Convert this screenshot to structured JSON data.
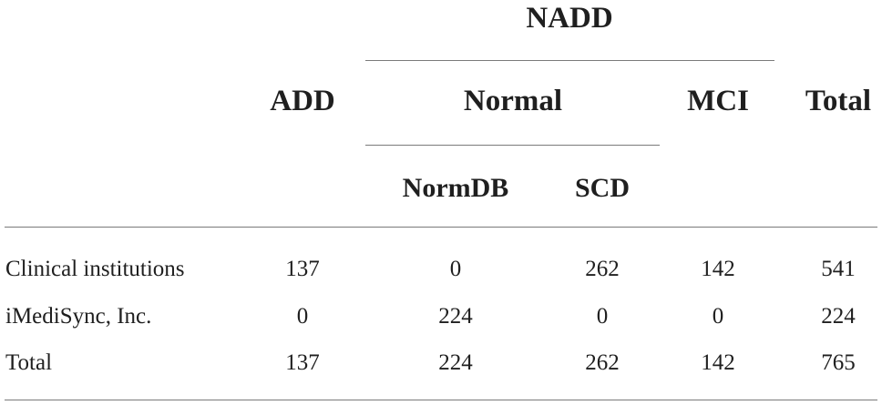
{
  "table": {
    "header": {
      "nadd": "NADD",
      "add": "ADD",
      "normal": "Normal",
      "mci": "MCI",
      "total": "Total",
      "normdb": "NormDB",
      "scd": "SCD"
    },
    "rows": [
      {
        "label": "Clinical institutions",
        "add": "137",
        "normdb": "0",
        "scd": "262",
        "mci": "142",
        "total": "541"
      },
      {
        "label": "iMediSync, Inc.",
        "add": "0",
        "normdb": "224",
        "scd": "0",
        "mci": "0",
        "total": "224"
      },
      {
        "label": "Total",
        "add": "137",
        "normdb": "224",
        "scd": "262",
        "mci": "142",
        "total": "765"
      }
    ]
  }
}
